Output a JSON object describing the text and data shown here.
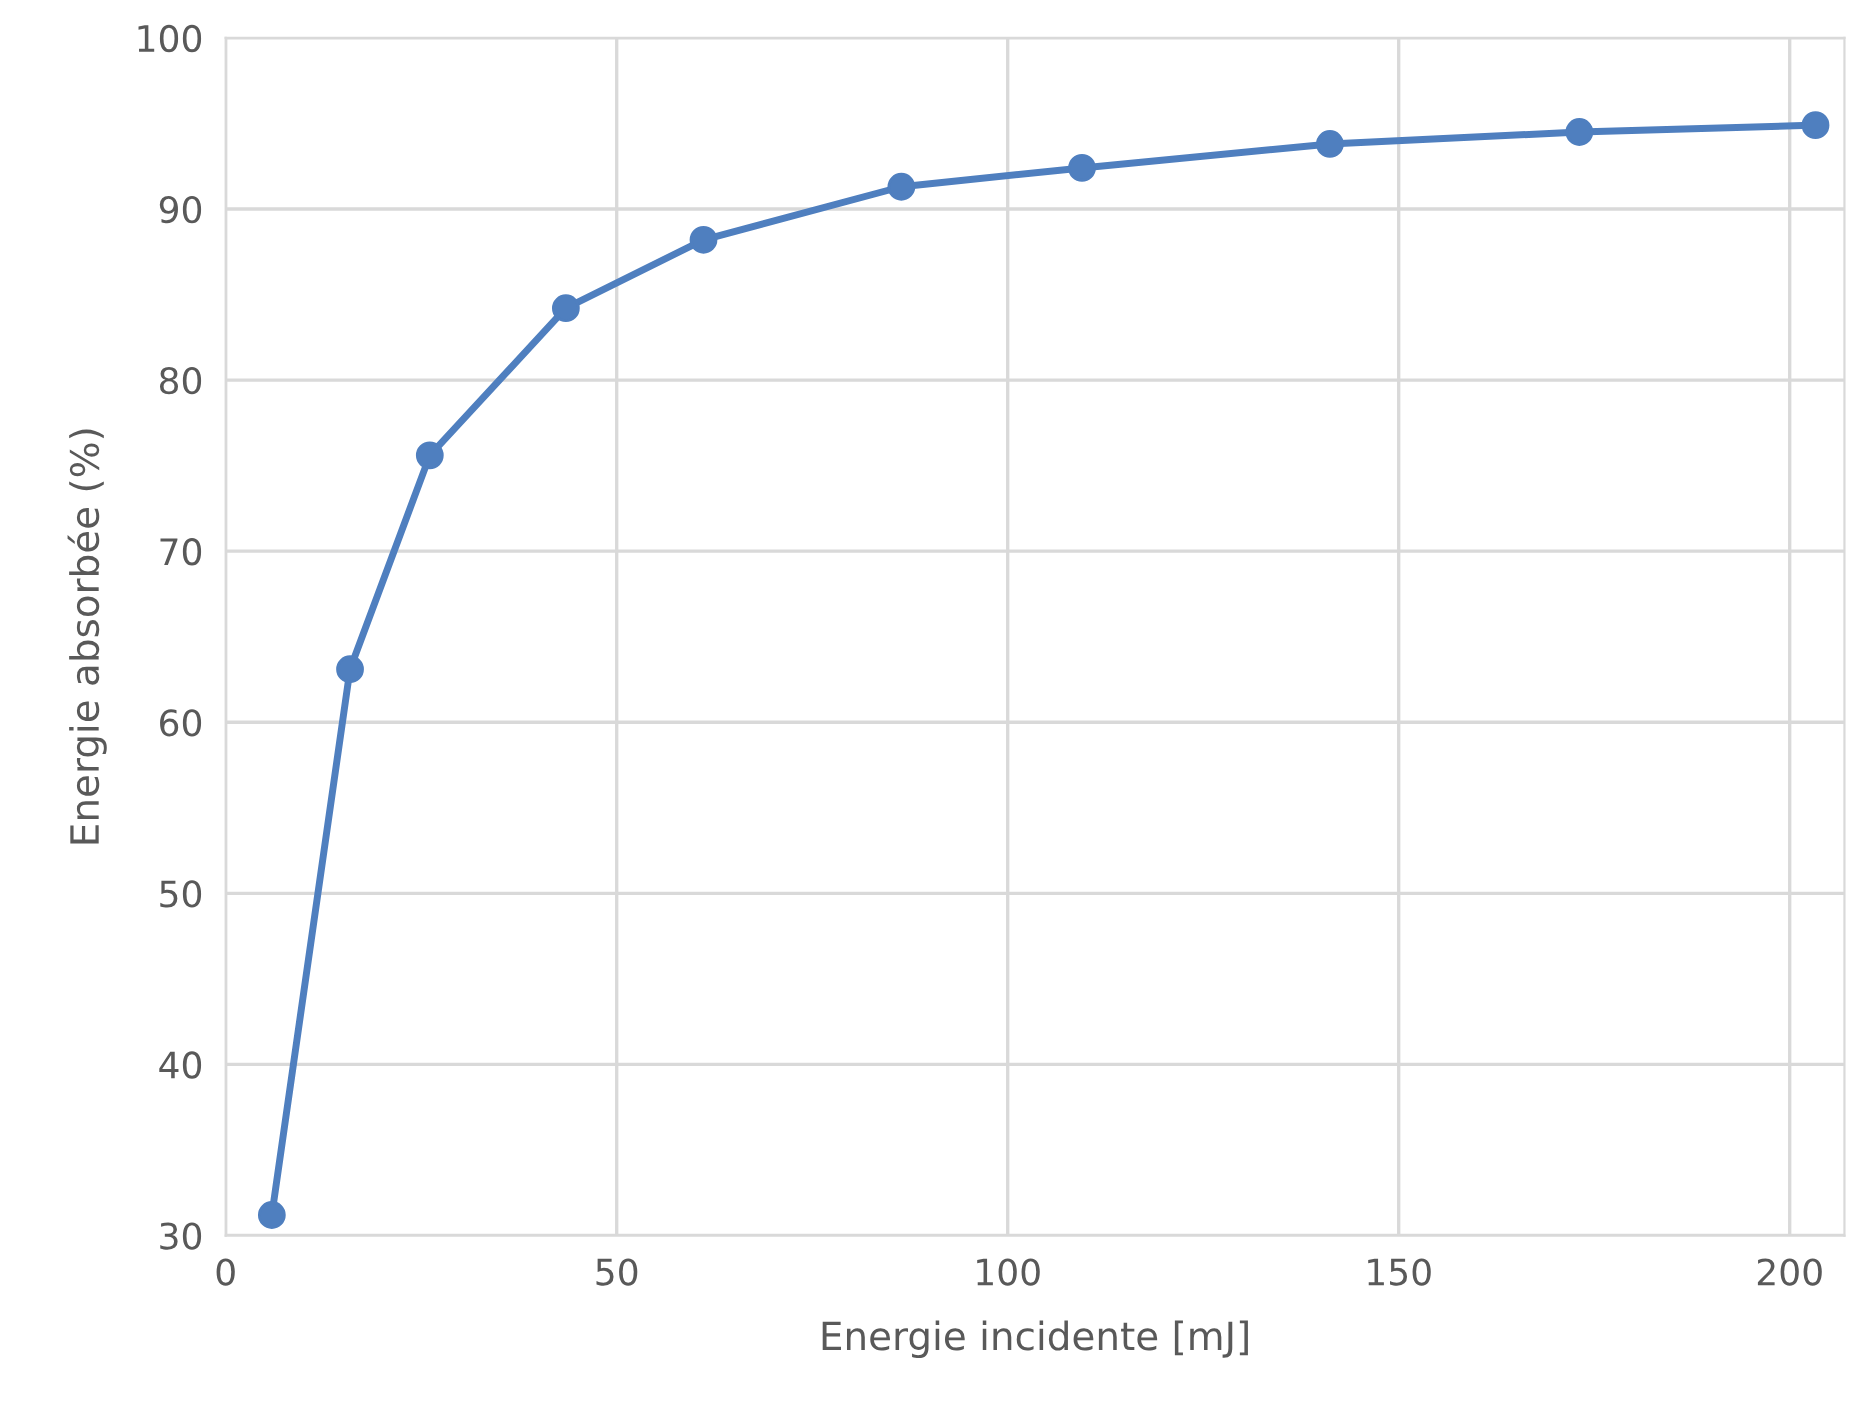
{
  "chart_data": {
    "type": "line",
    "xlabel": "Energie incidente [mJ]",
    "ylabel": "Energie absorbée (%)",
    "x": [
      5.9,
      15.9,
      26.1,
      43.5,
      61.1,
      86.4,
      109.5,
      141.2,
      173.1,
      203.3
    ],
    "series": [
      {
        "color": "#4f7fbf",
        "values": [
          31.2,
          63.1,
          75.6,
          84.2,
          88.2,
          91.3,
          92.4,
          93.8,
          94.5,
          94.9
        ]
      }
    ],
    "xlim": [
      0,
      207
    ],
    "xticks": [
      0,
      50,
      100,
      150,
      200
    ],
    "ylim": [
      30,
      100
    ],
    "yticks": [
      30,
      40,
      50,
      60,
      70,
      80,
      90,
      100
    ],
    "grid": true,
    "marker": "circle",
    "line_style": "solid"
  }
}
